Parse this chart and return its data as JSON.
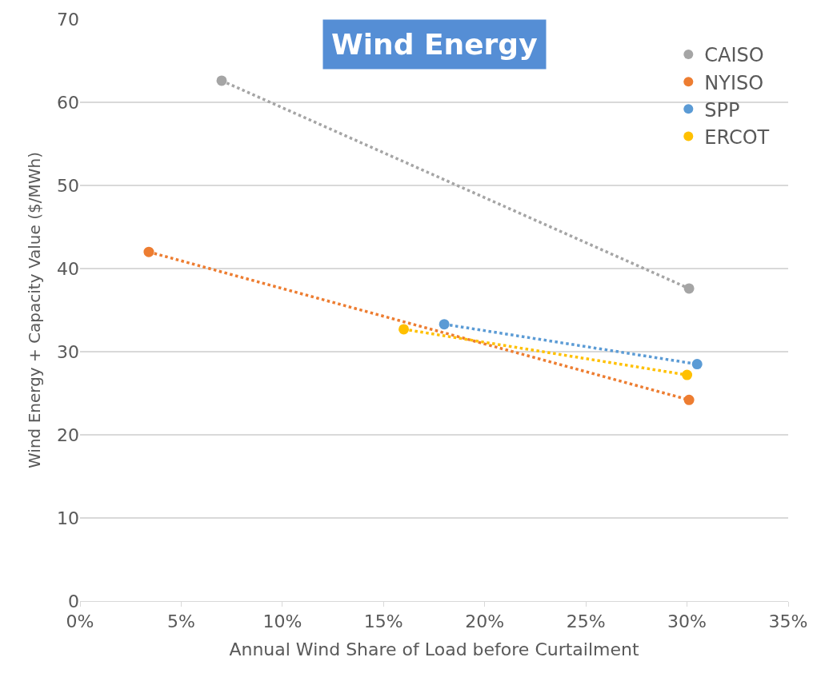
{
  "chart_data": {
    "type": "line",
    "title": "Wind Energy",
    "xlabel": "Annual Wind Share of Load before Curtailment",
    "ylabel": "Wind Energy + Capacity Value ($/MWh)",
    "series": [
      {
        "name": "CAISO",
        "color": "#a5a5a5",
        "x": [
          7.0,
          30.1
        ],
        "values": [
          62.6,
          37.6
        ]
      },
      {
        "name": "NYISO",
        "color": "#ed7d31",
        "x": [
          3.4,
          30.1
        ],
        "values": [
          42.0,
          24.2
        ]
      },
      {
        "name": "SPP",
        "color": "#5b9bd5",
        "x": [
          18.0,
          30.5
        ],
        "values": [
          33.3,
          28.5
        ]
      },
      {
        "name": "ERCOT",
        "color": "#ffc000",
        "x": [
          16.0,
          30.0
        ],
        "values": [
          32.7,
          27.2
        ]
      }
    ],
    "xlim": [
      0,
      35
    ],
    "xticks": [
      {
        "value": 0,
        "label": "0%"
      },
      {
        "value": 5,
        "label": "5%"
      },
      {
        "value": 10,
        "label": "10%"
      },
      {
        "value": 15,
        "label": "15%"
      },
      {
        "value": 20,
        "label": "20%"
      },
      {
        "value": 25,
        "label": "25%"
      },
      {
        "value": 30,
        "label": "30%"
      },
      {
        "value": 35,
        "label": "35%"
      }
    ],
    "ylim": [
      0,
      70
    ],
    "yticks": [
      0,
      10,
      20,
      30,
      40,
      50,
      60,
      70
    ],
    "grid": "y",
    "legend": "top right",
    "marker": "circle",
    "line_style": "dotted"
  }
}
